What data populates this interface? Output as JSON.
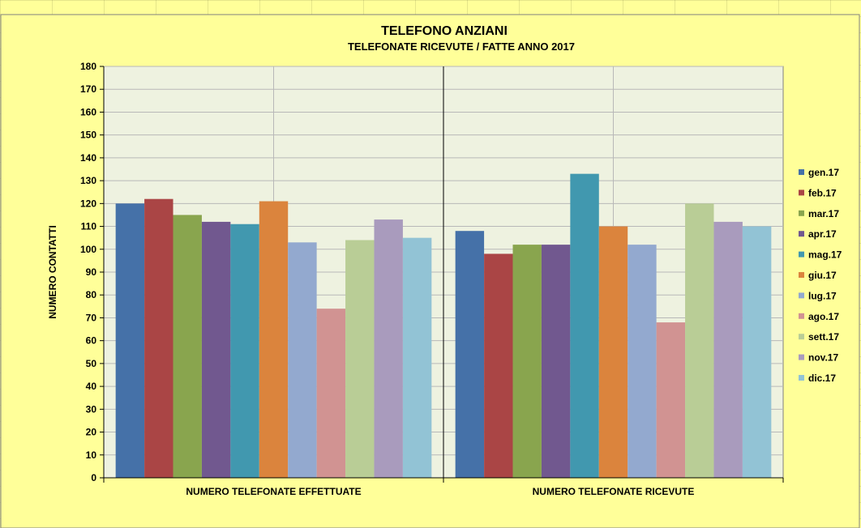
{
  "chart_data": {
    "type": "bar",
    "title": "TELEFONO ANZIANI",
    "subtitle": "TELEFONATE RICEVUTE / FATTE ANNO 2017",
    "xlabel": "",
    "ylabel": "NUMERO  CONTATTI",
    "ylim": [
      0,
      180
    ],
    "ytick_step": 10,
    "grid": true,
    "legend_position": "right",
    "categories": [
      "NUMERO TELEFONATE  EFFETTUATE",
      "NUMERO TELEFONATE  RICEVUTE"
    ],
    "series": [
      {
        "name": "gen.17",
        "color": "#4571a8",
        "values": [
          120,
          108
        ]
      },
      {
        "name": "feb.17",
        "color": "#aa4545",
        "values": [
          122,
          98
        ]
      },
      {
        "name": "mar.17",
        "color": "#89a54e",
        "values": [
          115,
          102
        ]
      },
      {
        "name": "apr.17",
        "color": "#71588f",
        "values": [
          112,
          102
        ]
      },
      {
        "name": "mag.17",
        "color": "#4198af",
        "values": [
          111,
          133
        ]
      },
      {
        "name": "giu.17",
        "color": "#db843d",
        "values": [
          121,
          110
        ]
      },
      {
        "name": "lug.17",
        "color": "#93a9cf",
        "values": [
          103,
          102
        ]
      },
      {
        "name": "ago.17",
        "color": "#d19392",
        "values": [
          74,
          68
        ]
      },
      {
        "name": "sett.17",
        "color": "#b9cd96",
        "values": [
          104,
          120
        ]
      },
      {
        "name": "nov.17",
        "color": "#a99bbd",
        "values": [
          113,
          112
        ]
      },
      {
        "name": "dic.17",
        "color": "#92c3d5",
        "values": [
          105,
          110
        ]
      }
    ]
  }
}
